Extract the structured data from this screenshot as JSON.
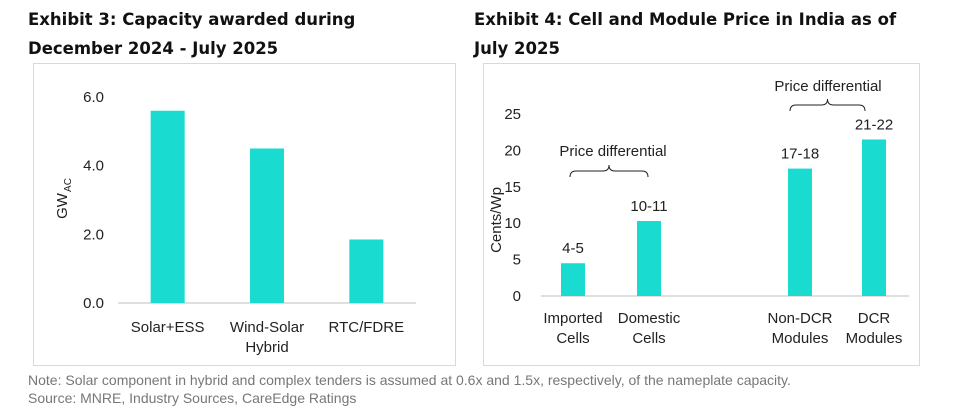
{
  "exhibit3": {
    "title_line1": "Exhibit 3: Capacity awarded during",
    "title_line2": "December 2024 - July 2025"
  },
  "exhibit4": {
    "title_line1": "Exhibit 4: Cell and Module Price in India as of",
    "title_line2": "July 2025"
  },
  "colors": {
    "bar": "#19dbd0",
    "axis": "#bfbfbf",
    "text": "#222222"
  },
  "chart_data": [
    {
      "type": "bar",
      "title": "Exhibit 3: Capacity awarded during December 2024 - July 2025",
      "categories": [
        [
          "Solar+ESS"
        ],
        [
          "Wind-Solar",
          "Hybrid"
        ],
        [
          "RTC/FDRE"
        ]
      ],
      "values": [
        5.6,
        4.5,
        1.85
      ],
      "ylabel_main": "GW",
      "ylabel_sub": "AC",
      "ylim": [
        0,
        6
      ],
      "yticks": [
        "0.0",
        "2.0",
        "4.0",
        "6.0"
      ],
      "ytick_values": [
        0,
        2,
        4,
        6
      ],
      "grid": false
    },
    {
      "type": "bar",
      "title": "Exhibit 4: Cell and Module Price in India as of July 2025",
      "categories": [
        [
          "Imported",
          "Cells"
        ],
        [
          "Domestic",
          "Cells"
        ],
        [
          "Non-DCR",
          "Modules"
        ],
        [
          "DCR",
          "Modules"
        ]
      ],
      "values": [
        4.5,
        10.3,
        17.5,
        21.5
      ],
      "data_labels": [
        "4-5",
        "10-11",
        "17-18",
        "21-22"
      ],
      "ylabel": "Cents/Wp",
      "ylim": [
        0,
        25
      ],
      "yticks": [
        "0",
        "5",
        "10",
        "15",
        "20",
        "25"
      ],
      "ytick_values": [
        0,
        5,
        10,
        15,
        20,
        25
      ],
      "grid": false,
      "annotations": [
        {
          "text": "Price differential",
          "spans": [
            0,
            1
          ]
        },
        {
          "text": "Price differential",
          "spans": [
            2,
            3
          ]
        }
      ]
    }
  ],
  "footnotes": {
    "note": "Note: Solar component in hybrid and complex tenders is assumed at 0.6x and 1.5x, respectively, of the nameplate capacity.",
    "source": "Source: MNRE, Industry Sources, CareEdge Ratings"
  }
}
